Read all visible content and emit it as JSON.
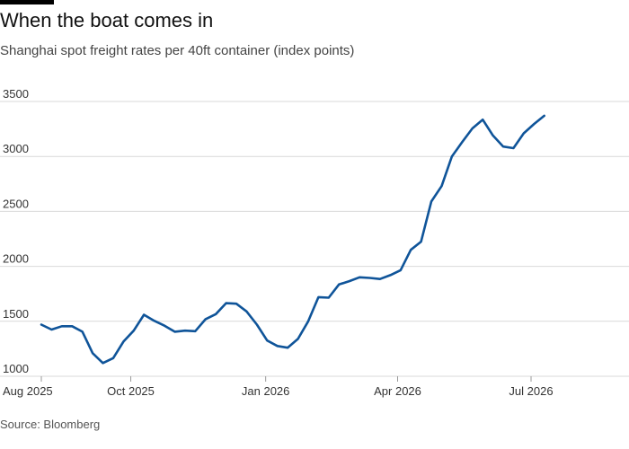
{
  "header": {
    "title": "When the boat comes in",
    "subtitle": "Shanghai spot freight rates per 40ft container (index points)"
  },
  "footer": {
    "source": "Source: Bloomberg"
  },
  "colors": {
    "line": "#0f5499",
    "grid": "#d9d9d9",
    "accent_bar": "#000000"
  },
  "chart_data": {
    "type": "line",
    "title": "When the boat comes in",
    "subtitle": "Shanghai spot freight rates per 40ft container (index points)",
    "xlabel": "",
    "ylabel": "",
    "ylim": [
      1000,
      3500
    ],
    "yticks": [
      1000,
      1500,
      2000,
      2500,
      3000,
      3500
    ],
    "xlim": [
      "2025-08-01",
      "2026-09-01"
    ],
    "xticks": [
      {
        "date": "2025-08-01",
        "label": "Aug 2025"
      },
      {
        "date": "2025-10-01",
        "label": "Oct 2025"
      },
      {
        "date": "2026-01-01",
        "label": "Jan 2026"
      },
      {
        "date": "2026-04-01",
        "label": "Apr 2026"
      },
      {
        "date": "2026-07-01",
        "label": "Jul 2026"
      }
    ],
    "grid": true,
    "series": [
      {
        "name": "",
        "x": [
          "2025-08-01",
          "2025-08-08",
          "2025-08-15",
          "2025-08-22",
          "2025-08-29",
          "2025-09-05",
          "2025-09-12",
          "2025-09-19",
          "2025-09-26",
          "2025-10-03",
          "2025-10-10",
          "2025-10-17",
          "2025-10-24",
          "2025-10-31",
          "2025-11-07",
          "2025-11-14",
          "2025-11-21",
          "2025-11-28",
          "2025-12-05",
          "2025-12-12",
          "2025-12-19",
          "2025-12-26",
          "2026-01-02",
          "2026-01-09",
          "2026-01-16",
          "2026-01-23",
          "2026-01-30",
          "2026-02-06",
          "2026-02-13",
          "2026-02-20",
          "2026-02-27",
          "2026-03-06",
          "2026-03-13",
          "2026-03-20",
          "2026-03-27",
          "2026-04-03",
          "2026-04-10",
          "2026-04-17",
          "2026-04-24",
          "2026-05-01",
          "2026-05-08",
          "2026-05-15",
          "2026-05-22",
          "2026-05-29",
          "2026-06-05",
          "2026-06-12",
          "2026-06-19",
          "2026-06-26",
          "2026-07-03",
          "2026-07-10",
          "2026-07-17",
          "2026-07-24",
          "2026-07-31",
          "2026-08-07"
        ],
        "values": [
          1470,
          1425,
          1455,
          1455,
          1405,
          1210,
          1120,
          1165,
          1315,
          1415,
          1560,
          1505,
          1460,
          1405,
          1415,
          1410,
          1520,
          1565,
          1665,
          1660,
          1590,
          1470,
          1325,
          1275,
          1260,
          1340,
          1500,
          1720,
          1715,
          1835,
          1865,
          1900,
          1895,
          1885,
          1920,
          1965,
          2150,
          2225,
          2590,
          2730,
          3000,
          3130,
          3255,
          3335,
          3190,
          3090,
          3075,
          3210,
          3295,
          3370,
          3370,
          3370,
          3370,
          3370
        ]
      }
    ]
  }
}
